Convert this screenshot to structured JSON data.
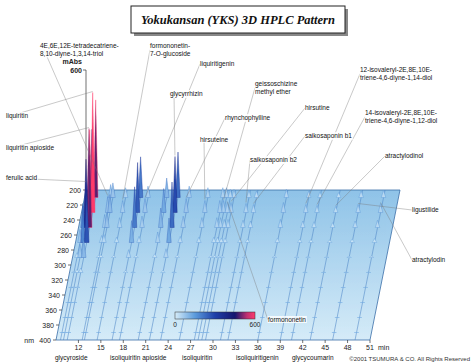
{
  "chart_data": {
    "type": "hplc_3d",
    "title": "Yokukansan (YKS) 3D HPLC Pattern",
    "x_label": "min",
    "y_label": "nm",
    "z_label": "mAbs",
    "xlim": [
      9,
      51
    ],
    "xticks": [
      12,
      15,
      18,
      21,
      24,
      27,
      30,
      33,
      36,
      39,
      42,
      45,
      48,
      51
    ],
    "ylim": [
      200,
      400
    ],
    "yticks": [
      200,
      220,
      240,
      260,
      280,
      300,
      320,
      340,
      360,
      380,
      400
    ],
    "zlim": [
      0,
      600
    ],
    "zticks": [
      600
    ],
    "colorbar": {
      "range": [
        0,
        600
      ],
      "ticks": [
        0,
        600
      ]
    },
    "peaks": [
      {
        "label": [
          "ferulic acid"
        ],
        "x": 9.6,
        "value": 150
      },
      {
        "label": [
          "liquiritin apioside"
        ],
        "x": 10.0,
        "value": 420
      },
      {
        "label": [
          "liquiritin"
        ],
        "x": 10.5,
        "value": 600
      },
      {
        "label": [
          "4E,6E,12E-tetradecatriene-",
          "8,10-diyne-1,3,14-triol"
        ],
        "x": 12.5,
        "value": 80
      },
      {
        "label": [
          "formononetin-",
          "7-O-glucoside"
        ],
        "x": 14.5,
        "value": 60
      },
      {
        "label": [
          "glycyroside"
        ],
        "x": 12.8,
        "value": 90
      },
      {
        "label": [
          "liquiritigenin"
        ],
        "x": 17.5,
        "value": 70
      },
      {
        "label": [
          "isoliquiritin apioside"
        ],
        "x": 16.5,
        "value": 250
      },
      {
        "label": [
          "glycyrrhizin"
        ],
        "x": 21.5,
        "value": 280
      },
      {
        "label": [
          "isoliquiritin"
        ],
        "x": 20.0,
        "value": 120
      },
      {
        "label": [
          "rhynchophylline"
        ],
        "x": 23.0,
        "value": 70
      },
      {
        "label": [
          "geissoschizine",
          "methyl ether"
        ],
        "x": 28.0,
        "value": 60
      },
      {
        "label": [
          "hirsuteine"
        ],
        "x": 25.5,
        "value": 60
      },
      {
        "label": [
          "hirsutine"
        ],
        "x": 29.0,
        "value": 50
      },
      {
        "label": [
          "isoliquiritigenin"
        ],
        "x": 27.5,
        "value": 60
      },
      {
        "label": [
          "formononetin"
        ],
        "x": 28.5,
        "value": 50
      },
      {
        "label": [
          "saikosaponin b2"
        ],
        "x": 31.0,
        "value": 45
      },
      {
        "label": [
          "saikosaponin b1"
        ],
        "x": 32.0,
        "value": 40
      },
      {
        "label": [
          "glycycoumarin"
        ],
        "x": 36.0,
        "value": 50
      },
      {
        "label": [
          "12-isovaleryl-2E,8E,10E-",
          "triene-4,6-diyne-1,14-diol"
        ],
        "x": 39.0,
        "value": 40
      },
      {
        "label": [
          "14-isovaleryl-2E,8E,10E-",
          "triene-4,6-diyne-1,12-diol"
        ],
        "x": 40.5,
        "value": 35
      },
      {
        "label": [
          "atractylodinol"
        ],
        "x": 43.0,
        "value": 30
      },
      {
        "label": [
          "ligustilide"
        ],
        "x": 46.0,
        "value": 40
      },
      {
        "label": [
          "atractylodin"
        ],
        "x": 49.0,
        "value": 45
      }
    ],
    "copyright": "©2001 TSUMURA & CO. All Rights Reserved"
  }
}
